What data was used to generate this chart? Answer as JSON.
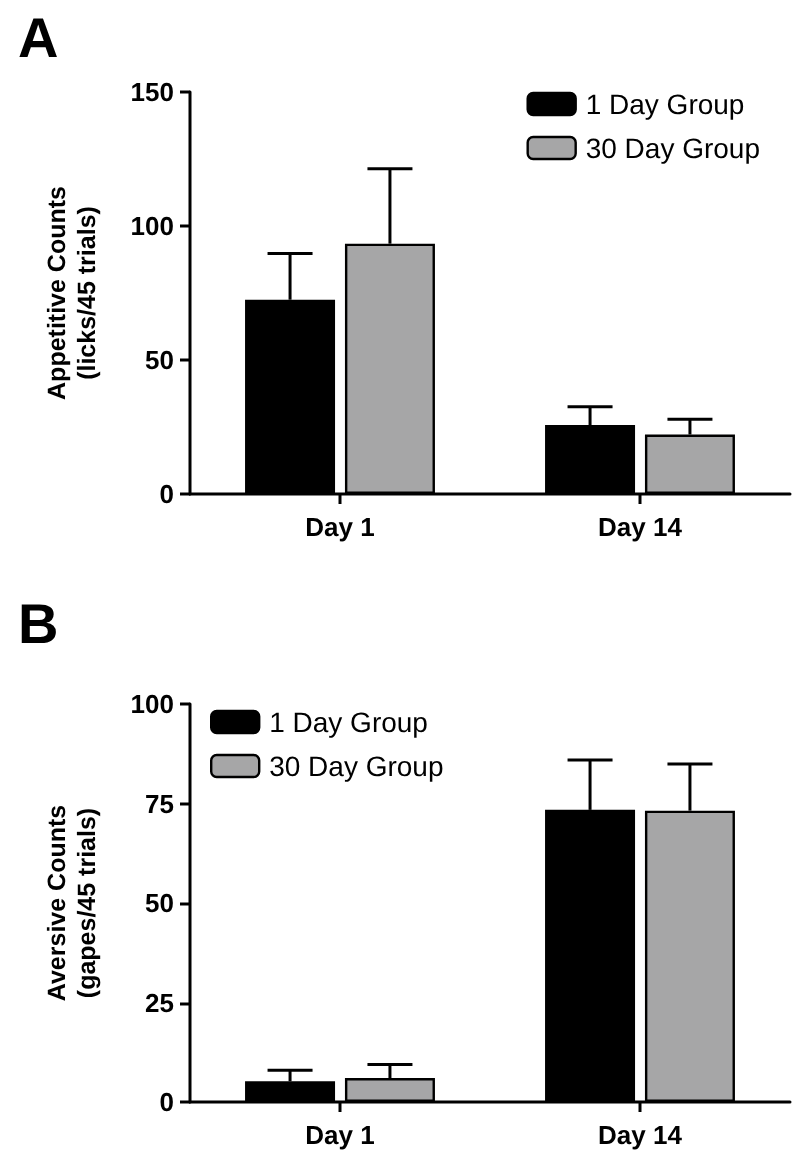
{
  "chart_data": [
    {
      "type": "bar",
      "title": "A",
      "ylabel": "Appetitive Counts\n(licks/45 trials)",
      "categories": [
        "Day 1",
        "Day 14"
      ],
      "series": [
        {
          "name": "1 Day Group",
          "color": "#000000",
          "values": [
            72.5,
            25.7
          ],
          "errors": [
            [
              72.5,
              89.7
            ],
            [
              25.7,
              32.6
            ]
          ]
        },
        {
          "name": "30 Day Group",
          "color": "#a6a6a7",
          "values": [
            93.4,
            22.2
          ],
          "errors": [
            [
              93.4,
              121.4
            ],
            [
              22.2,
              27.9
            ]
          ]
        }
      ],
      "ylim": [
        0,
        150
      ],
      "yticks": [
        0,
        50,
        100,
        150
      ],
      "legend": "top right",
      "grid": false
    },
    {
      "type": "bar",
      "title": "B",
      "ylabel": "Aversive Counts\n(gapes/45 trials)",
      "categories": [
        "Day 1",
        "Day 14"
      ],
      "series": [
        {
          "name": "1 Day Group",
          "color": "#000000",
          "values": [
            5.2,
            73.4
          ],
          "errors": [
            [
              5.2,
              8.0
            ],
            [
              73.4,
              85.9
            ]
          ]
        },
        {
          "name": "30 Day Group",
          "color": "#a6a6a7",
          "values": [
            6.0,
            73.2
          ],
          "errors": [
            [
              6.0,
              9.4
            ],
            [
              73.2,
              84.9
            ]
          ]
        }
      ],
      "ylim": [
        0,
        100
      ],
      "yticks": [
        0,
        25,
        50,
        75,
        100
      ],
      "legend": "top left",
      "grid": false
    }
  ]
}
